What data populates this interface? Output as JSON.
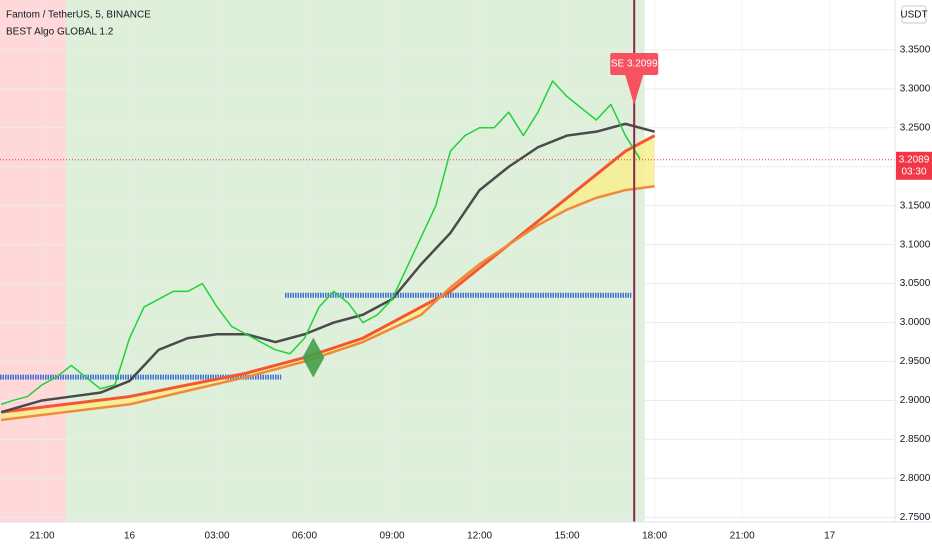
{
  "chart_data": {
    "type": "line",
    "title": "Fantom / TetherUS, 5, BINANCE",
    "subtitle": "BEST Algo GLOBAL 1.2",
    "currency": "USDT",
    "xlim": [
      19.56,
      50.24
    ],
    "ylim": [
      2.744,
      3.414
    ],
    "xticks": [
      {
        "value": 21,
        "label": "21:00"
      },
      {
        "value": 24,
        "label": "16"
      },
      {
        "value": 27,
        "label": "03:00"
      },
      {
        "value": 30,
        "label": "06:00"
      },
      {
        "value": 33,
        "label": "09:00"
      },
      {
        "value": 36,
        "label": "12:00"
      },
      {
        "value": 39,
        "label": "15:00"
      },
      {
        "value": 42,
        "label": "18:00"
      },
      {
        "value": 45,
        "label": "21:00"
      },
      {
        "value": 48,
        "label": "17"
      }
    ],
    "yticks": [
      {
        "value": 3.35,
        "label": "3.3500"
      },
      {
        "value": 3.3,
        "label": "3.3000"
      },
      {
        "value": 3.25,
        "label": "3.2500"
      },
      {
        "value": 3.2,
        "label": "3.2000"
      },
      {
        "value": 3.15,
        "label": "3.1500"
      },
      {
        "value": 3.1,
        "label": "3.1000"
      },
      {
        "value": 3.05,
        "label": "3.0500"
      },
      {
        "value": 3.0,
        "label": "3.0000"
      },
      {
        "value": 2.95,
        "label": "2.9500"
      },
      {
        "value": 2.9,
        "label": "2.9000"
      },
      {
        "value": 2.85,
        "label": "2.8500"
      },
      {
        "value": 2.8,
        "label": "2.8000"
      },
      {
        "value": 2.75,
        "label": "2.7500"
      }
    ],
    "grid": true,
    "shading": [
      {
        "start": 19.56,
        "end": 21.82,
        "color": "#ffd9d9"
      },
      {
        "start": 21.82,
        "end": 41.66,
        "color": "#dff0da"
      }
    ],
    "levels": [
      {
        "start": 19.56,
        "end": 29.2,
        "value": 2.93,
        "color": "#3d6fd6"
      },
      {
        "start": 29.33,
        "end": 41.2,
        "value": 3.035,
        "color": "#3d6fd6"
      }
    ],
    "band_fill": "#f7ef8f",
    "series": [
      {
        "color": "#1fd23a",
        "x": [
          19.6,
          20,
          20.5,
          21,
          21.5,
          22,
          22.5,
          23,
          23.5,
          24,
          24.5,
          25,
          25.5,
          26,
          26.5,
          27,
          27.5,
          28,
          28.5,
          29,
          29.5,
          30,
          30.5,
          31,
          31.5,
          32,
          32.5,
          33,
          33.5,
          34,
          34.5,
          35,
          35.5,
          36,
          36.5,
          37,
          37.5,
          38,
          38.5,
          39,
          39.5,
          40,
          40.5,
          41,
          41.5
        ],
        "values": [
          2.895,
          2.9,
          2.905,
          2.92,
          2.93,
          2.945,
          2.93,
          2.915,
          2.92,
          2.98,
          3.02,
          3.03,
          3.04,
          3.04,
          3.05,
          3.02,
          2.995,
          2.985,
          2.975,
          2.965,
          2.96,
          2.98,
          3.02,
          3.04,
          3.025,
          3.0,
          3.01,
          3.03,
          3.07,
          3.11,
          3.15,
          3.22,
          3.24,
          3.25,
          3.25,
          3.27,
          3.24,
          3.27,
          3.31,
          3.29,
          3.275,
          3.26,
          3.28,
          3.24,
          3.2099
        ]
      },
      {
        "color": "#4a4a4a",
        "x": [
          19.6,
          21,
          22,
          23,
          24,
          25,
          26,
          27,
          28,
          29,
          30,
          31,
          32,
          33,
          34,
          35,
          36,
          37,
          38,
          39,
          40,
          41,
          42
        ],
        "values": [
          2.885,
          2.9,
          2.905,
          2.91,
          2.925,
          2.965,
          2.98,
          2.985,
          2.985,
          2.975,
          2.985,
          3.0,
          3.01,
          3.03,
          3.075,
          3.115,
          3.17,
          3.2,
          3.225,
          3.24,
          3.245,
          3.255,
          3.245
        ]
      },
      {
        "color": "#f4572f",
        "x": [
          19.6,
          24,
          28,
          30,
          32,
          34,
          35,
          36,
          37,
          38,
          39,
          40,
          41,
          42
        ],
        "values": [
          2.885,
          2.905,
          2.935,
          2.955,
          2.98,
          3.02,
          3.04,
          3.07,
          3.1,
          3.13,
          3.16,
          3.19,
          3.22,
          3.24
        ]
      },
      {
        "color": "#f08a3a",
        "x": [
          19.6,
          24,
          28,
          30,
          32,
          34,
          35,
          36,
          37,
          38,
          39,
          40,
          41,
          42
        ],
        "values": [
          2.875,
          2.895,
          2.93,
          2.95,
          2.975,
          3.01,
          3.045,
          3.075,
          3.1,
          3.125,
          3.145,
          3.16,
          3.17,
          3.175
        ]
      }
    ],
    "cursor_x": 41.3,
    "cursor_color": "#8e2450",
    "buy_signal": {
      "x": 30.3,
      "value": 2.955,
      "color": "#43a047"
    },
    "sell_signal": {
      "x": 41.3,
      "value": 3.2099,
      "label": "SE 3.2099",
      "color": "#f7525f"
    },
    "last_price": {
      "value": 3.2089,
      "countdown": "03:30",
      "color": "#f23645"
    }
  }
}
